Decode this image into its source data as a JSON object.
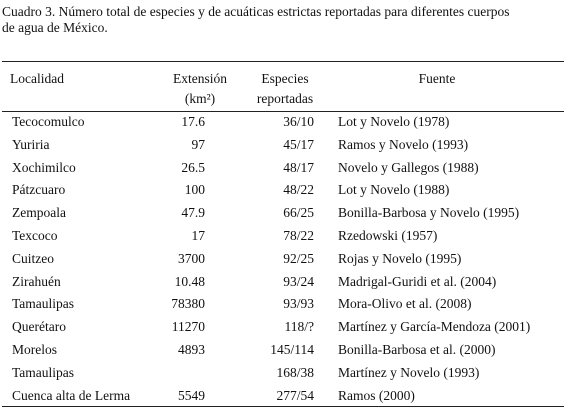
{
  "caption": [
    "Cuadro 3. Número total de especies y de acuáticas estrictas reportadas para diferentes cuerpos",
    "de agua de México."
  ],
  "table": {
    "headers": [
      [
        "Localidad"
      ],
      [
        "Extensión",
        "(km²)"
      ],
      [
        "Especies",
        "reportadas"
      ],
      [
        "Fuente"
      ]
    ],
    "rows": [
      [
        "Tecocomulco",
        "17.6",
        "36/10",
        "Lot y Novelo (1978)"
      ],
      [
        "Yuriria",
        "97",
        "45/17",
        "Ramos y Novelo (1993)"
      ],
      [
        "Xochimilco",
        "26.5",
        "48/17",
        "Novelo y Gallegos (1988)"
      ],
      [
        "Pátzcuaro",
        "100",
        "48/22",
        "Lot y Novelo (1988)"
      ],
      [
        "Zempoala",
        "47.9",
        "66/25",
        "Bonilla-Barbosa y Novelo (1995)"
      ],
      [
        "Texcoco",
        "17",
        "78/22",
        "Rzedowski (1957)"
      ],
      [
        "Cuitzeo",
        "3700",
        "92/25",
        "Rojas y Novelo (1995)"
      ],
      [
        "Zirahuén",
        "10.48",
        "93/24",
        "Madrigal-Guridi et al. (2004)"
      ],
      [
        "Tamaulipas",
        "78380",
        "93/93",
        "Mora-Olivo et al. (2008)"
      ],
      [
        "Querétaro",
        "11270",
        "118/?",
        "Martínez y García-Mendoza (2001)"
      ],
      [
        "Morelos",
        "4893",
        "145/114",
        "Bonilla-Barbosa et al. (2000)"
      ],
      [
        "Tamaulipas",
        null,
        "168/38",
        "Martínez y Novelo (1993)"
      ],
      [
        "Cuenca alta de Lerma",
        "5549",
        "277/54",
        "Ramos (2000)"
      ]
    ]
  }
}
